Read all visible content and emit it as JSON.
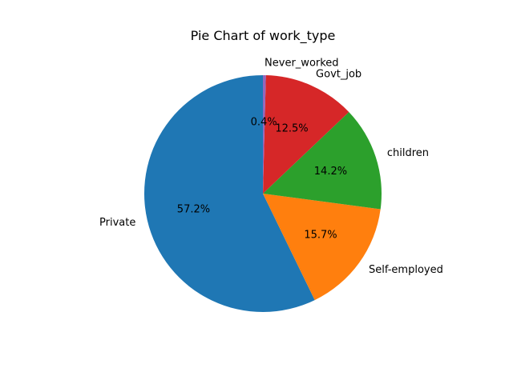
{
  "chart_data": {
    "type": "pie",
    "title": "Pie Chart of work_type",
    "categories": [
      "Private",
      "Self-employed",
      "children",
      "Govt_job",
      "Never_worked"
    ],
    "values": [
      57.2,
      15.7,
      14.2,
      12.5,
      0.4
    ],
    "labels": [
      "57.2%",
      "15.7%",
      "14.2%",
      "12.5%",
      "0.4%"
    ],
    "colors": [
      "#1f77b4",
      "#ff7f0e",
      "#2ca02c",
      "#d62728",
      "#9467bd"
    ],
    "start_angle_deg": 90,
    "counterclockwise": true,
    "legend": "none"
  }
}
